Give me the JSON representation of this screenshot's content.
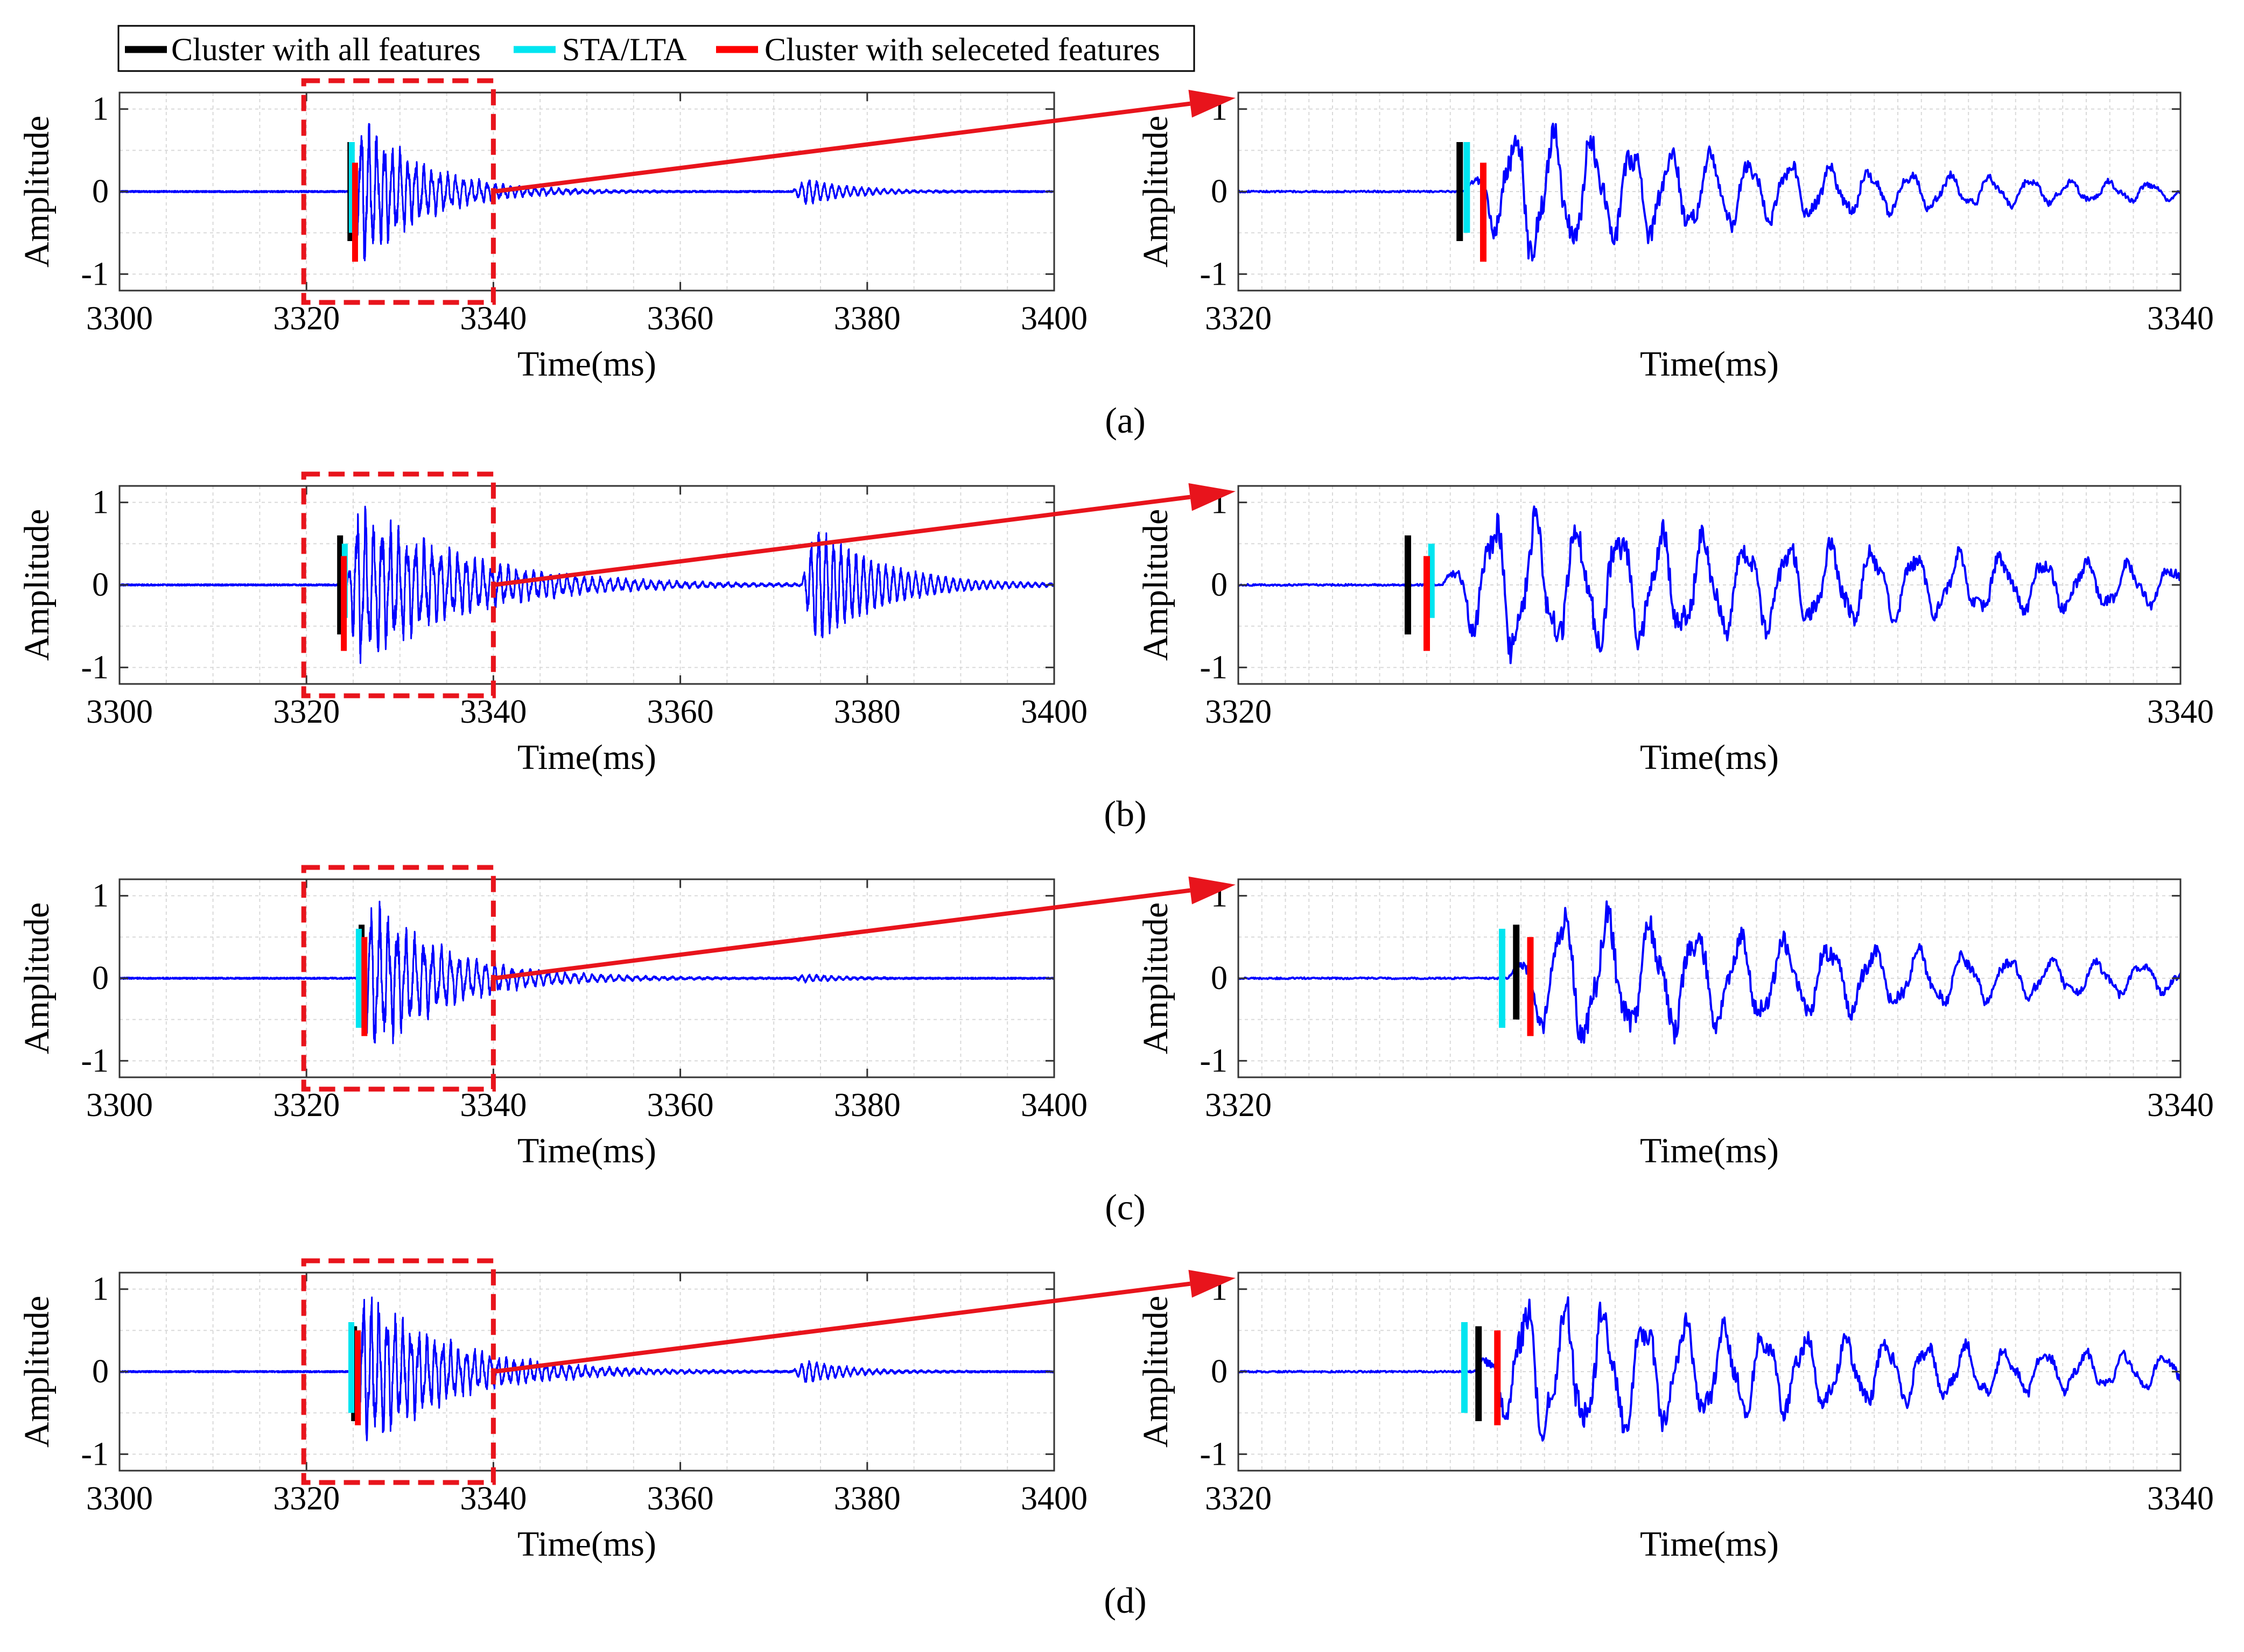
{
  "legend": {
    "items": [
      {
        "label": "Cluster with all features",
        "color": "#000000"
      },
      {
        "label": "STA/LTA",
        "color": "#00e5f0"
      },
      {
        "label": "Cluster with seleceted features",
        "color": "#ff0000"
      }
    ]
  },
  "colors": {
    "signal": "#0000ff",
    "zoom_box": "#e8141c",
    "arrow": "#e8141c",
    "grid": "#d9d9d9"
  },
  "chart_data": [
    {
      "type": "line",
      "panel": "(a)",
      "title": "",
      "xlabel": "Time(ms)",
      "ylabel": "Amplitude",
      "overview": {
        "xlim": [
          3300,
          3400
        ],
        "ylim": [
          -1.2,
          1.2
        ],
        "xticks": [
          3300,
          3320,
          3340,
          3360,
          3380,
          3400
        ],
        "yticks": [
          -1,
          0,
          1
        ],
        "zoom_window": [
          3320,
          3340
        ]
      },
      "zoom": {
        "xlim": [
          3320,
          3340
        ],
        "ylim": [
          -1.2,
          1.2
        ],
        "xticks": [
          3320,
          3340
        ],
        "yticks": [
          -1,
          0,
          1
        ]
      },
      "signal": {
        "onset": 3324.8,
        "decay": 6.5,
        "period": 0.85,
        "second_event": {
          "start": 3372,
          "amp": 0.18,
          "decay": 5
        },
        "noise": 0.02
      },
      "picks": [
        {
          "method": "Cluster with all features",
          "time": 3324.7,
          "y_top": 0.6,
          "y_bottom": -0.6
        },
        {
          "method": "STA/LTA",
          "time": 3324.85,
          "y_top": 0.6,
          "y_bottom": -0.5
        },
        {
          "method": "Cluster with seleceted features",
          "time": 3325.2,
          "y_top": 0.35,
          "y_bottom": -0.85
        }
      ]
    },
    {
      "type": "line",
      "panel": "(b)",
      "title": "",
      "xlabel": "Time(ms)",
      "ylabel": "Amplitude",
      "overview": {
        "xlim": [
          3300,
          3400
        ],
        "ylim": [
          -1.2,
          1.2
        ],
        "xticks": [
          3300,
          3320,
          3340,
          3360,
          3380,
          3400
        ],
        "yticks": [
          -1,
          0,
          1
        ],
        "zoom_window": [
          3320,
          3340
        ]
      },
      "zoom": {
        "xlim": [
          3320,
          3340
        ],
        "ylim": [
          -1.2,
          1.2
        ],
        "xticks": [
          3320,
          3340
        ],
        "yticks": [
          -1,
          0,
          1
        ]
      },
      "signal": {
        "onset": 3324.3,
        "decay": 11,
        "period": 0.9,
        "second_event": {
          "start": 3373,
          "amp": 0.75,
          "decay": 7
        },
        "noise": 0.02
      },
      "picks": [
        {
          "method": "Cluster with all features",
          "time": 3323.6,
          "y_top": 0.6,
          "y_bottom": -0.6
        },
        {
          "method": "STA/LTA",
          "time": 3324.1,
          "y_top": 0.5,
          "y_bottom": -0.4
        },
        {
          "method": "Cluster with seleceted features",
          "time": 3324.0,
          "y_top": 0.35,
          "y_bottom": -0.8
        }
      ]
    },
    {
      "type": "line",
      "panel": "(c)",
      "title": "",
      "xlabel": "Time(ms)",
      "ylabel": "Amplitude",
      "overview": {
        "xlim": [
          3300,
          3400
        ],
        "ylim": [
          -1.2,
          1.2
        ],
        "xticks": [
          3300,
          3320,
          3340,
          3360,
          3380,
          3400
        ],
        "yticks": [
          -1,
          0,
          1
        ],
        "zoom_window": [
          3320,
          3340
        ]
      },
      "zoom": {
        "xlim": [
          3320,
          3340
        ],
        "ylim": [
          -1.2,
          1.2
        ],
        "xticks": [
          3320,
          3340
        ],
        "yticks": [
          -1,
          0,
          1
        ]
      },
      "signal": {
        "onset": 3325.7,
        "decay": 8,
        "period": 0.95,
        "second_event": {
          "start": 3372,
          "amp": 0.06,
          "decay": 4
        },
        "noise": 0.02
      },
      "picks": [
        {
          "method": "Cluster with all features",
          "time": 3325.9,
          "y_top": 0.65,
          "y_bottom": -0.5
        },
        {
          "method": "STA/LTA",
          "time": 3325.6,
          "y_top": 0.6,
          "y_bottom": -0.6
        },
        {
          "method": "Cluster with seleceted features",
          "time": 3326.2,
          "y_top": 0.5,
          "y_bottom": -0.7
        }
      ]
    },
    {
      "type": "line",
      "panel": "(d)",
      "title": "",
      "xlabel": "Time(ms)",
      "ylabel": "Amplitude",
      "overview": {
        "xlim": [
          3300,
          3400
        ],
        "ylim": [
          -1.2,
          1.2
        ],
        "xticks": [
          3300,
          3320,
          3340,
          3360,
          3380,
          3400
        ],
        "yticks": [
          -1,
          0,
          1
        ],
        "zoom_window": [
          3320,
          3340
        ]
      },
      "zoom": {
        "xlim": [
          3320,
          3340
        ],
        "ylim": [
          -1.2,
          1.2
        ],
        "xticks": [
          3320,
          3340
        ],
        "yticks": [
          -1,
          0,
          1
        ]
      },
      "signal": {
        "onset": 3325.0,
        "decay": 9,
        "period": 0.85,
        "second_event": {
          "start": 3372,
          "amp": 0.15,
          "decay": 5
        },
        "noise": 0.02
      },
      "picks": [
        {
          "method": "Cluster with all features",
          "time": 3325.1,
          "y_top": 0.55,
          "y_bottom": -0.6
        },
        {
          "method": "STA/LTA",
          "time": 3324.8,
          "y_top": 0.6,
          "y_bottom": -0.5
        },
        {
          "method": "Cluster with seleceted features",
          "time": 3325.5,
          "y_top": 0.5,
          "y_bottom": -0.65
        }
      ]
    }
  ]
}
